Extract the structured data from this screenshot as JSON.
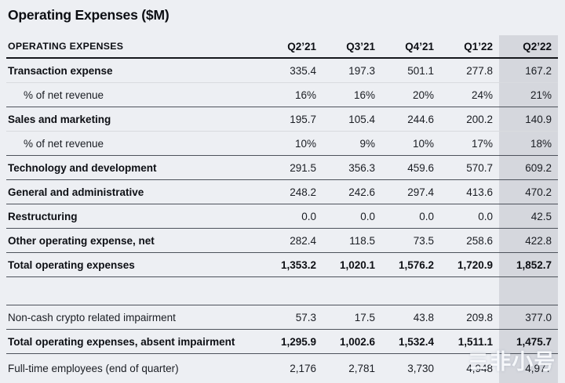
{
  "page": {
    "title": "Operating Expenses ($M)"
  },
  "chart_data": {
    "type": "table",
    "title": "Operating Expenses ($M)",
    "unit": "$M",
    "columns": [
      "OPERATING EXPENSES",
      "Q2’21",
      "Q3’21",
      "Q4’21",
      "Q1’22",
      "Q2’22"
    ],
    "highlighted_column": "Q2’22",
    "rows": [
      {
        "label": "Transaction expense",
        "style": "section",
        "divider": "light",
        "values": [
          "335.4",
          "197.3",
          "501.1",
          "277.8",
          "167.2"
        ]
      },
      {
        "label": "% of net revenue",
        "style": "sub",
        "divider": "dark",
        "values": [
          "16%",
          "16%",
          "20%",
          "24%",
          "21%"
        ]
      },
      {
        "label": "Sales and marketing",
        "style": "section",
        "divider": "light",
        "values": [
          "195.7",
          "105.4",
          "244.6",
          "200.2",
          "140.9"
        ]
      },
      {
        "label": "% of net revenue",
        "style": "sub",
        "divider": "dark",
        "values": [
          "10%",
          "9%",
          "10%",
          "17%",
          "18%"
        ]
      },
      {
        "label": "Technology and development",
        "style": "section",
        "divider": "dark",
        "values": [
          "291.5",
          "356.3",
          "459.6",
          "570.7",
          "609.2"
        ]
      },
      {
        "label": "General and administrative",
        "style": "section",
        "divider": "dark",
        "values": [
          "248.2",
          "242.6",
          "297.4",
          "413.6",
          "470.2"
        ]
      },
      {
        "label": "Restructuring",
        "style": "section",
        "divider": "dark",
        "values": [
          "0.0",
          "0.0",
          "0.0",
          "0.0",
          "42.5"
        ]
      },
      {
        "label": "Other operating expense, net",
        "style": "section",
        "divider": "dark",
        "values": [
          "282.4",
          "118.5",
          "73.5",
          "258.6",
          "422.8"
        ]
      },
      {
        "label": "Total operating expenses",
        "style": "total",
        "divider": "dark",
        "values": [
          "1,353.2",
          "1,020.1",
          "1,576.2",
          "1,720.9",
          "1,852.7"
        ]
      },
      {
        "label": "",
        "style": "spacer",
        "divider": "dark",
        "values": [
          "",
          "",
          "",
          "",
          ""
        ]
      },
      {
        "label": "Non-cash crypto related impairment",
        "style": "plain",
        "divider": "dark",
        "values": [
          "57.3",
          "17.5",
          "43.8",
          "209.8",
          "377.0"
        ]
      },
      {
        "label": "Total operating expenses, absent impairment",
        "style": "total",
        "divider": "dark",
        "values": [
          "1,295.9",
          "1,002.6",
          "1,532.4",
          "1,511.1",
          "1,475.7"
        ]
      },
      {
        "label": "Full-time employees (end of quarter)",
        "style": "plain",
        "divider": "none",
        "values": [
          "2,176",
          "2,781",
          "3,730",
          "4,948",
          "4,977"
        ]
      }
    ]
  },
  "watermark": {
    "logo_glyph": "☰",
    "text": "非小号"
  },
  "colors": {
    "page_bg": "#edeff3",
    "highlight_col_bg": "#d5d7dd",
    "text": "#0d0f14",
    "divider_light": "#d9dbdf",
    "divider_dark": "#4d525b",
    "header_rule": "#15171c"
  }
}
